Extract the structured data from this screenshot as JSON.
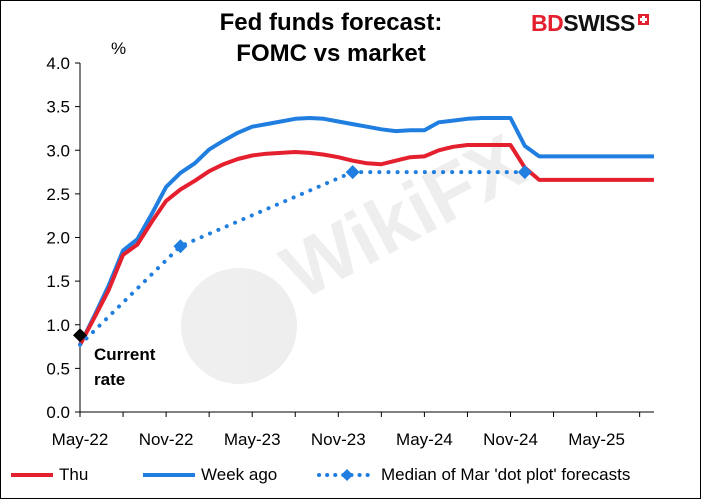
{
  "title": {
    "line1": "Fed funds forecast:",
    "line2": "FOMC vs market"
  },
  "logo": {
    "part1": "BD",
    "part2": "SWISS"
  },
  "watermark": "WikiFX",
  "colors": {
    "thu": "#e4202e",
    "week_ago": "#1f7ee0",
    "dot_plot": "#1f7ee0",
    "current": "#000000"
  },
  "chart_data": {
    "type": "line",
    "ylabel": "%",
    "ylim": [
      0.0,
      4.0
    ],
    "yticks": [
      "0.0",
      "0.5",
      "1.0",
      "1.5",
      "2.0",
      "2.5",
      "3.0",
      "3.5",
      "4.0"
    ],
    "xticks": [
      "May-22",
      "Nov-22",
      "May-23",
      "Nov-23",
      "May-24",
      "Nov-24",
      "May-25"
    ],
    "x_range": [
      "May-22",
      "Sep-25"
    ],
    "grid": false,
    "legend_position": "bottom",
    "series": [
      {
        "name": "Thu",
        "style": "solid",
        "x": [
          "May-22",
          "Jun-22",
          "Jul-22",
          "Aug-22",
          "Sep-22",
          "Oct-22",
          "Nov-22",
          "Dec-22",
          "Jan-23",
          "Feb-23",
          "Mar-23",
          "Apr-23",
          "May-23",
          "Jun-23",
          "Jul-23",
          "Aug-23",
          "Sep-23",
          "Oct-23",
          "Nov-23",
          "Dec-23",
          "Jan-24",
          "Feb-24",
          "Mar-24",
          "Apr-24",
          "May-24",
          "Jun-24",
          "Jul-24",
          "Aug-24",
          "Sep-24",
          "Oct-24",
          "Nov-24",
          "Dec-24",
          "Jan-25",
          "Feb-25",
          "Mar-25",
          "Apr-25",
          "May-25",
          "Jun-25",
          "Jul-25",
          "Aug-25",
          "Sep-25"
        ],
        "values": [
          0.77,
          1.08,
          1.4,
          1.8,
          1.92,
          2.18,
          2.42,
          2.55,
          2.65,
          2.76,
          2.84,
          2.9,
          2.94,
          2.96,
          2.97,
          2.98,
          2.97,
          2.95,
          2.92,
          2.88,
          2.85,
          2.84,
          2.88,
          2.92,
          2.93,
          3.0,
          3.04,
          3.06,
          3.06,
          3.06,
          3.06,
          2.8,
          2.66,
          2.66,
          2.66,
          2.66,
          2.66,
          2.66,
          2.66,
          2.66,
          2.66
        ]
      },
      {
        "name": "Week ago",
        "style": "solid",
        "x": [
          "May-22",
          "Jun-22",
          "Jul-22",
          "Aug-22",
          "Sep-22",
          "Oct-22",
          "Nov-22",
          "Dec-22",
          "Jan-23",
          "Feb-23",
          "Mar-23",
          "Apr-23",
          "May-23",
          "Jun-23",
          "Jul-23",
          "Aug-23",
          "Sep-23",
          "Oct-23",
          "Nov-23",
          "Dec-23",
          "Jan-24",
          "Feb-24",
          "Mar-24",
          "Apr-24",
          "May-24",
          "Jun-24",
          "Jul-24",
          "Aug-24",
          "Sep-24",
          "Oct-24",
          "Nov-24",
          "Dec-24",
          "Jan-25",
          "Feb-25",
          "Mar-25",
          "Apr-25",
          "May-25",
          "Jun-25",
          "Jul-25",
          "Aug-25",
          "Sep-25"
        ],
        "values": [
          0.77,
          1.1,
          1.45,
          1.85,
          1.98,
          2.27,
          2.58,
          2.74,
          2.85,
          3.01,
          3.11,
          3.2,
          3.27,
          3.3,
          3.33,
          3.36,
          3.37,
          3.36,
          3.33,
          3.3,
          3.27,
          3.24,
          3.22,
          3.23,
          3.23,
          3.32,
          3.34,
          3.36,
          3.37,
          3.37,
          3.37,
          3.05,
          2.93,
          2.93,
          2.93,
          2.93,
          2.93,
          2.93,
          2.93,
          2.93,
          2.93
        ]
      },
      {
        "name": "Median of Mar 'dot plot' forecasts",
        "style": "dotted",
        "marker": "diamond",
        "x": [
          "May-22",
          "Dec-22",
          "Dec-23",
          "Dec-24"
        ],
        "values": [
          0.77,
          1.9,
          2.75,
          2.75
        ]
      }
    ],
    "current_rate": {
      "x": "May-22",
      "value": 0.88,
      "label_line1": "Current",
      "label_line2": "rate"
    }
  }
}
